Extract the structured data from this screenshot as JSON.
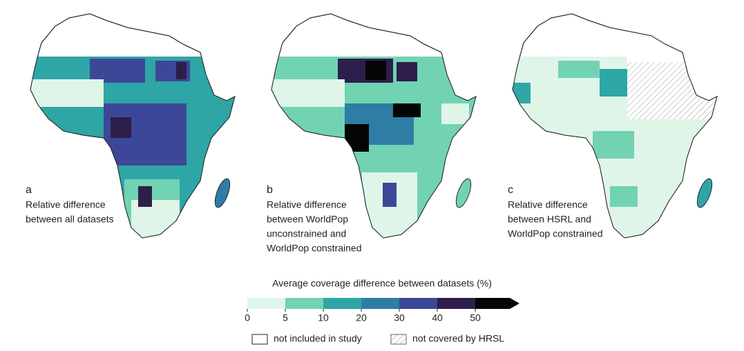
{
  "panels": [
    {
      "letter": "a",
      "caption": [
        "Relative difference",
        "between all datasets"
      ]
    },
    {
      "letter": "b",
      "caption": [
        "Relative difference",
        "between WorldPop",
        "unconstrained and",
        "WorldPop constrained"
      ]
    },
    {
      "letter": "c",
      "caption": [
        "Relative difference",
        "between HSRL and",
        "WorldPop constrained"
      ]
    }
  ],
  "legend": {
    "title": "Average coverage difference between datasets (%)",
    "ticks": [
      0,
      5,
      10,
      20,
      30,
      40,
      50
    ],
    "colors": [
      "#dff5e8",
      "#72d3b3",
      "#2ea6a6",
      "#2d7da5",
      "#3c4897",
      "#2e1e4c",
      "#050505"
    ],
    "entries": [
      "not included in study",
      "not covered by HRSL"
    ]
  }
}
